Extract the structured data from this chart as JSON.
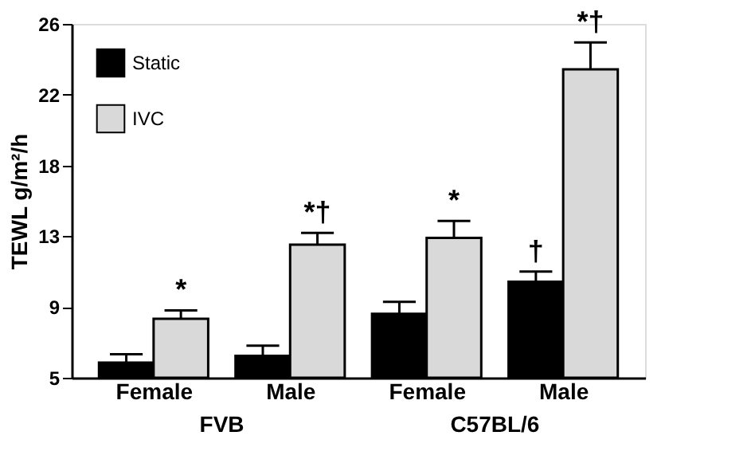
{
  "chart_data": {
    "type": "bar",
    "ylabel": "TEWL g/m²/h",
    "categories": [
      "Female",
      "Male",
      "Female",
      "Male"
    ],
    "series": [
      {
        "name": "Static",
        "color": "#000000",
        "values": [
          5.9,
          6.3,
          8.8,
          10.7
        ],
        "errors": [
          [
            5.9,
            6.4
          ],
          [
            6.3,
            6.9
          ],
          [
            8.8,
            9.5
          ],
          [
            10.7,
            11.3
          ]
        ],
        "value_labels": [
          null,
          null,
          null,
          "†"
        ]
      },
      {
        "name": "IVC",
        "color": "#d9d9d9",
        "values": [
          8.5,
          12.9,
          13.3,
          23.3
        ],
        "errors": [
          [
            8.5,
            9.0
          ],
          [
            12.9,
            13.6
          ],
          [
            13.3,
            14.3
          ],
          [
            23.3,
            24.9
          ]
        ],
        "value_labels": [
          "*",
          "*†",
          "*",
          "*†"
        ]
      }
    ],
    "ylim": [
      5,
      26
    ],
    "yticks": [
      5,
      {
        "value": 9.2,
        "label": "9"
      },
      {
        "value": 13.4,
        "label": "13"
      },
      {
        "value": 17.6,
        "label": "18"
      },
      {
        "value": 21.8,
        "label": "22"
      },
      26
    ],
    "annotations": [
      "FVB",
      "C57BL/6"
    ],
    "legend": "top left",
    "grid": false
  }
}
